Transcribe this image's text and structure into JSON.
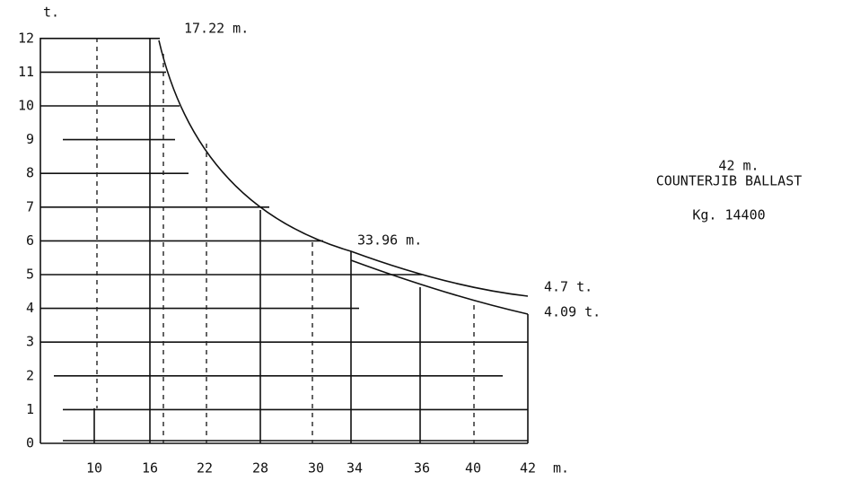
{
  "axes": {
    "y_unit": "t.",
    "y_labels": [
      "0",
      "1",
      "2",
      "3",
      "4",
      "5",
      "6",
      "7",
      "8",
      "9",
      "10",
      "11",
      "12"
    ],
    "x_labels": [
      "10",
      "16",
      "22",
      "28",
      "30",
      "34",
      "36",
      "40",
      "42"
    ],
    "x_unit": "m."
  },
  "annotations": {
    "max_load_radius": "17.22 m.",
    "mid_radius": "33.96 m.",
    "load_a": "4.7 t.",
    "load_b": "4.09 t."
  },
  "legend": {
    "jib": "42 m.",
    "ballast": "COUNTERJIB BALLAST",
    "weight": "Kg. 14400"
  }
}
